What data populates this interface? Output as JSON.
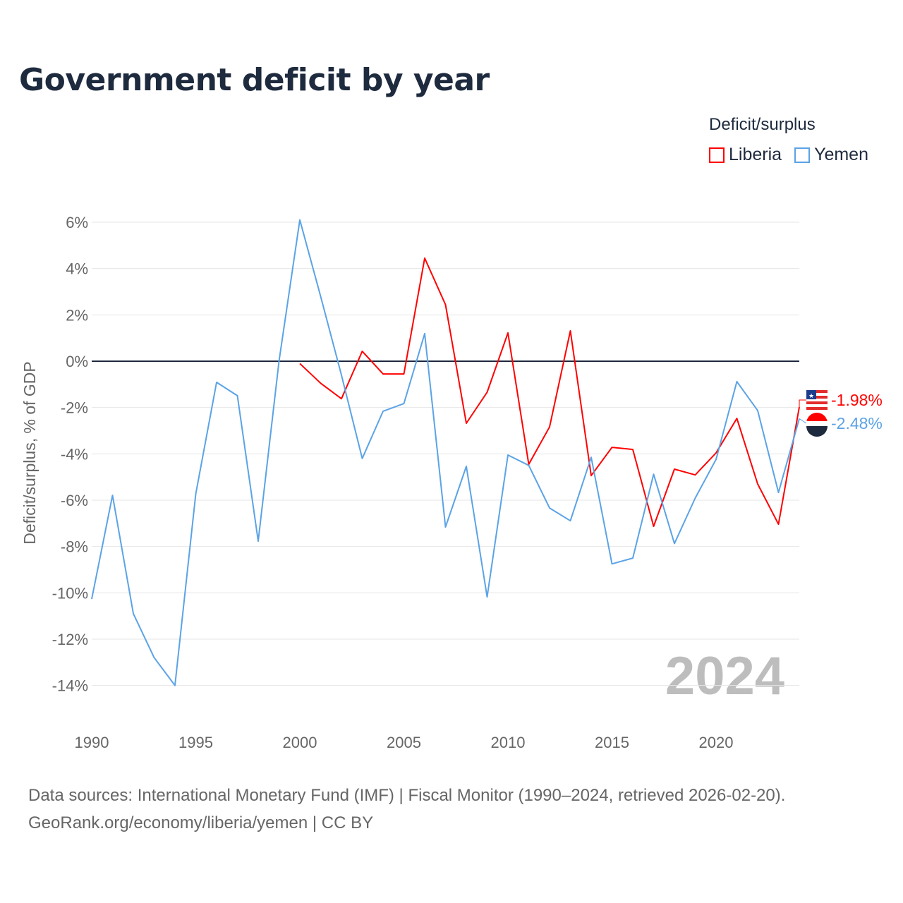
{
  "title": "Government deficit by year",
  "legend": {
    "title": "Deficit/surplus",
    "items": [
      {
        "label": "Liberia",
        "color": "#ff0000"
      },
      {
        "label": "Yemen",
        "color": "#5ba3e6"
      }
    ]
  },
  "source": {
    "line1": "Data sources: International Monetary Fund (IMF) | Fiscal Monitor (1990–2024, retrieved 2026-02-20).",
    "line2": "GeoRank.org/economy/liberia/yemen | CC BY"
  },
  "chart_data": {
    "type": "line",
    "title": "Government deficit by year",
    "ylabel": "Deficit/surplus, % of GDP",
    "xlabel": "",
    "year_watermark": "2024",
    "xlim": [
      1990,
      2024
    ],
    "ylim": [
      -15,
      6.5
    ],
    "x_ticks": [
      1990,
      1995,
      2000,
      2005,
      2010,
      2015,
      2020
    ],
    "y_ticks": [
      6,
      4,
      2,
      0,
      -2,
      -4,
      -6,
      -8,
      -10,
      -12,
      -14
    ],
    "y_tick_labels": [
      "6%",
      "4%",
      "2%",
      "0%",
      "-2%",
      "-4%",
      "-6%",
      "-8%",
      "-10%",
      "-12%",
      "-14%"
    ],
    "grid": true,
    "legend_position": "top-right",
    "series": [
      {
        "name": "Liberia",
        "color": "#ff0000",
        "end_label": "-1.98%",
        "start_year": 2000,
        "values": [
          -0.1,
          -0.95,
          -1.62,
          0.43,
          -0.55,
          -0.55,
          4.45,
          2.44,
          -2.68,
          -1.34,
          1.22,
          -4.45,
          -2.84,
          1.31,
          -4.94,
          -3.72,
          -3.81,
          -7.13,
          -4.66,
          -4.91,
          -3.96,
          -2.47,
          -5.3,
          -7.04,
          -1.98
        ]
      },
      {
        "name": "Yemen",
        "color": "#5ba3e6",
        "end_label": "-2.48%",
        "start_year": 1990,
        "values": [
          -10.27,
          -5.79,
          -10.9,
          -12.8,
          -14.0,
          -5.73,
          -0.91,
          -1.49,
          -7.77,
          0.0,
          6.1,
          2.8,
          -0.6,
          -4.2,
          -2.16,
          -1.83,
          1.19,
          -7.16,
          -4.54,
          -10.18,
          -4.05,
          -4.5,
          -6.34,
          -6.89,
          -4.15,
          -8.75,
          -8.5,
          -4.88,
          -7.87,
          -5.91,
          -4.24,
          -0.88,
          -2.13,
          -5.67,
          -2.48
        ]
      }
    ]
  }
}
